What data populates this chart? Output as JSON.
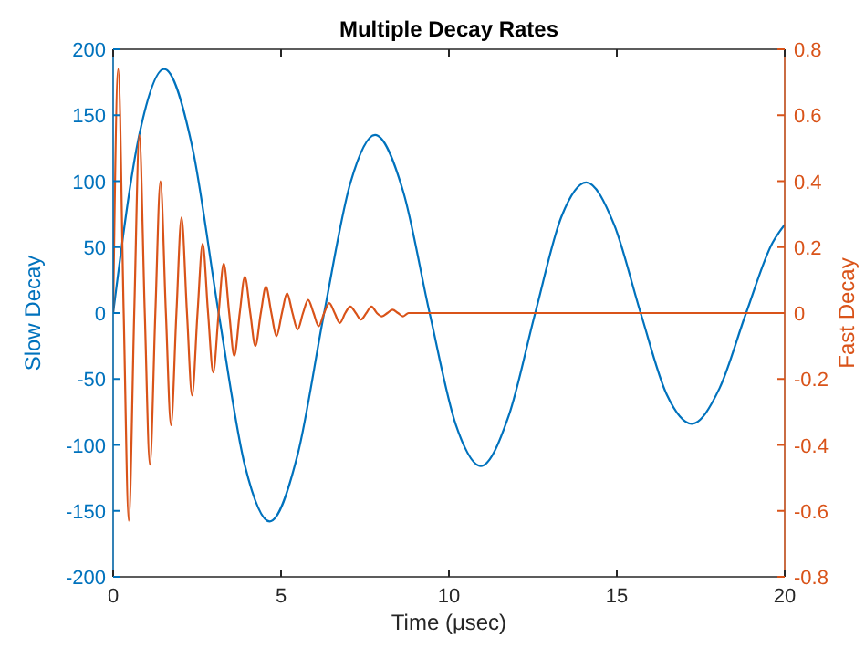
{
  "chart_data": {
    "type": "line",
    "title": "Multiple Decay Rates",
    "xlabel": "Time  (μsec)",
    "ylabel": "Slow Decay",
    "y2label": "Fast Decay",
    "xlim": [
      0,
      20
    ],
    "xticks": [
      0,
      5,
      10,
      15,
      20
    ],
    "ylim": [
      -200,
      200
    ],
    "yticks": [
      -200,
      -150,
      -100,
      -50,
      0,
      50,
      100,
      150,
      200
    ],
    "y2lim": [
      -0.8,
      0.8
    ],
    "y2ticks": [
      -0.8,
      -0.6,
      -0.4,
      -0.2,
      0,
      0.2,
      0.4,
      0.6,
      0.8
    ],
    "series": [
      {
        "color": "#0072bd",
        "x": [
          0,
          0.785,
          1.52,
          2.356,
          3.142,
          3.927,
          4.66,
          5.498,
          6.283,
          7.069,
          7.8,
          8.639,
          9.425,
          10.21,
          10.95,
          11.78,
          12.57,
          13.35,
          14.09,
          14.92,
          15.71,
          16.49,
          17.23,
          18.06,
          18.85,
          19.63,
          20
        ],
        "values": [
          0,
          136,
          185,
          126,
          0,
          -116,
          -158,
          -107,
          0,
          99,
          135,
          92,
          0,
          -85,
          -116,
          -78,
          0,
          73,
          99,
          67,
          0,
          -62,
          -84,
          -57,
          0,
          53,
          67
        ]
      },
      {
        "color": "#d95319",
        "axis": "y2",
        "x": [
          0,
          0.152,
          0.314,
          0.466,
          0.628,
          0.78,
          0.942,
          1.095,
          1.257,
          1.409,
          1.571,
          1.723,
          1.885,
          2.037,
          2.199,
          2.351,
          2.513,
          2.666,
          2.827,
          2.98,
          3.142,
          3.294,
          3.456,
          3.608,
          3.77,
          3.922,
          4.084,
          4.236,
          4.398,
          4.551,
          4.712,
          4.865,
          5.027,
          5.179,
          5.341,
          5.493,
          5.655,
          5.807,
          5.969,
          6.121,
          6.283,
          6.435,
          6.597,
          6.75,
          6.912,
          7.064,
          7.226,
          7.378,
          7.54,
          7.692,
          7.854,
          8.006,
          8.168,
          8.32,
          8.482,
          8.634,
          8.796,
          20
        ],
        "values": [
          0,
          0.74,
          0,
          -0.63,
          0,
          0.54,
          0,
          -0.46,
          0,
          0.4,
          0,
          -0.34,
          0,
          0.29,
          0,
          -0.25,
          0,
          0.21,
          0,
          -0.18,
          0,
          0.15,
          0,
          -0.13,
          0,
          0.11,
          0,
          -0.1,
          0,
          0.08,
          0,
          -0.07,
          0,
          0.06,
          0,
          -0.05,
          0,
          0.04,
          0,
          -0.04,
          0,
          0.03,
          0,
          -0.03,
          0,
          0.02,
          0,
          -0.02,
          0,
          0.02,
          0,
          -0.01,
          0,
          0.01,
          0,
          -0.01,
          0,
          0
        ]
      }
    ]
  }
}
